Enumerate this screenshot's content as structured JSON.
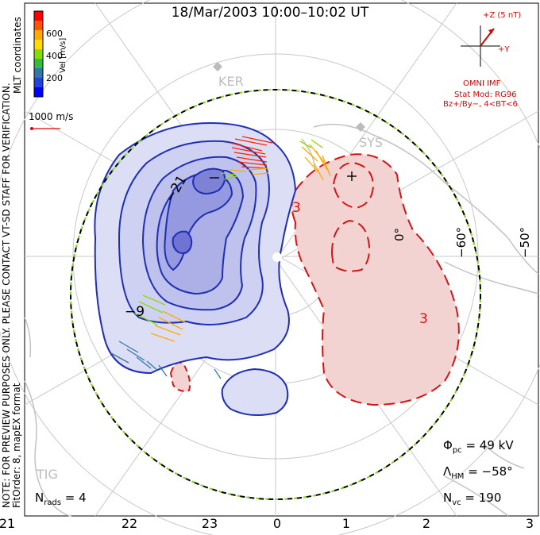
{
  "title": "18/Mar/2003 10:00–10:02 UT",
  "note_line1": "NOTE: FOR PREVIEW PURPOSES ONLY. PLEASE CONTACT VT-SD STAFF FOR VERIFICATION.",
  "note_line2": "FitOrder: 8, mapEX format",
  "coords_label": "MLT coordinates",
  "colorbar": {
    "label": "Vel [m/s]",
    "ticks": [
      "600",
      "400",
      "200"
    ],
    "colors": [
      "#ff0000",
      "#ff5500",
      "#ffaa00",
      "#ffdd00",
      "#88dd00",
      "#33bb44",
      "#3377aa",
      "#2244dd",
      "#0000ff"
    ]
  },
  "reference_vector": "1000 m/s",
  "imf": {
    "z_label": "+Z (5 nT)",
    "y_label": "+Y",
    "source": "OMNI IMF",
    "model_line1": "Stat Mod: RG96",
    "model_line2": "Bz+/By−, 4<BT<6"
  },
  "stations": [
    "KER",
    "SYS",
    "TIG"
  ],
  "latitude_labels": [
    "−60°",
    "−50°",
    "0°"
  ],
  "contour_labels": [
    "−21",
    "−9",
    "3",
    "3"
  ],
  "potential_markers": [
    "−",
    "+"
  ],
  "stats": {
    "phi_pc": "Φ",
    "phi_pc_sub": "pc",
    "phi_pc_value": " = 49 kV",
    "lambda": "Λ",
    "lambda_sub": "HM",
    "lambda_value": " = −58°",
    "nvc": "N",
    "nvc_sub": "vc",
    "nvc_value": " = 190",
    "nrads": "N",
    "nrads_sub": "rads",
    "nrads_value": " = 4"
  },
  "mlt_ticks": [
    "21",
    "22",
    "23",
    "0",
    "1",
    "2",
    "3"
  ],
  "colors": {
    "negative_fill": "#c7c9ef",
    "negative_contour": "#1f2fb5",
    "positive_fill": "#f3d2d2",
    "positive_contour": "#d51515",
    "map_outline": "#bdbdbd",
    "boundary_green": "#88dd22"
  }
}
